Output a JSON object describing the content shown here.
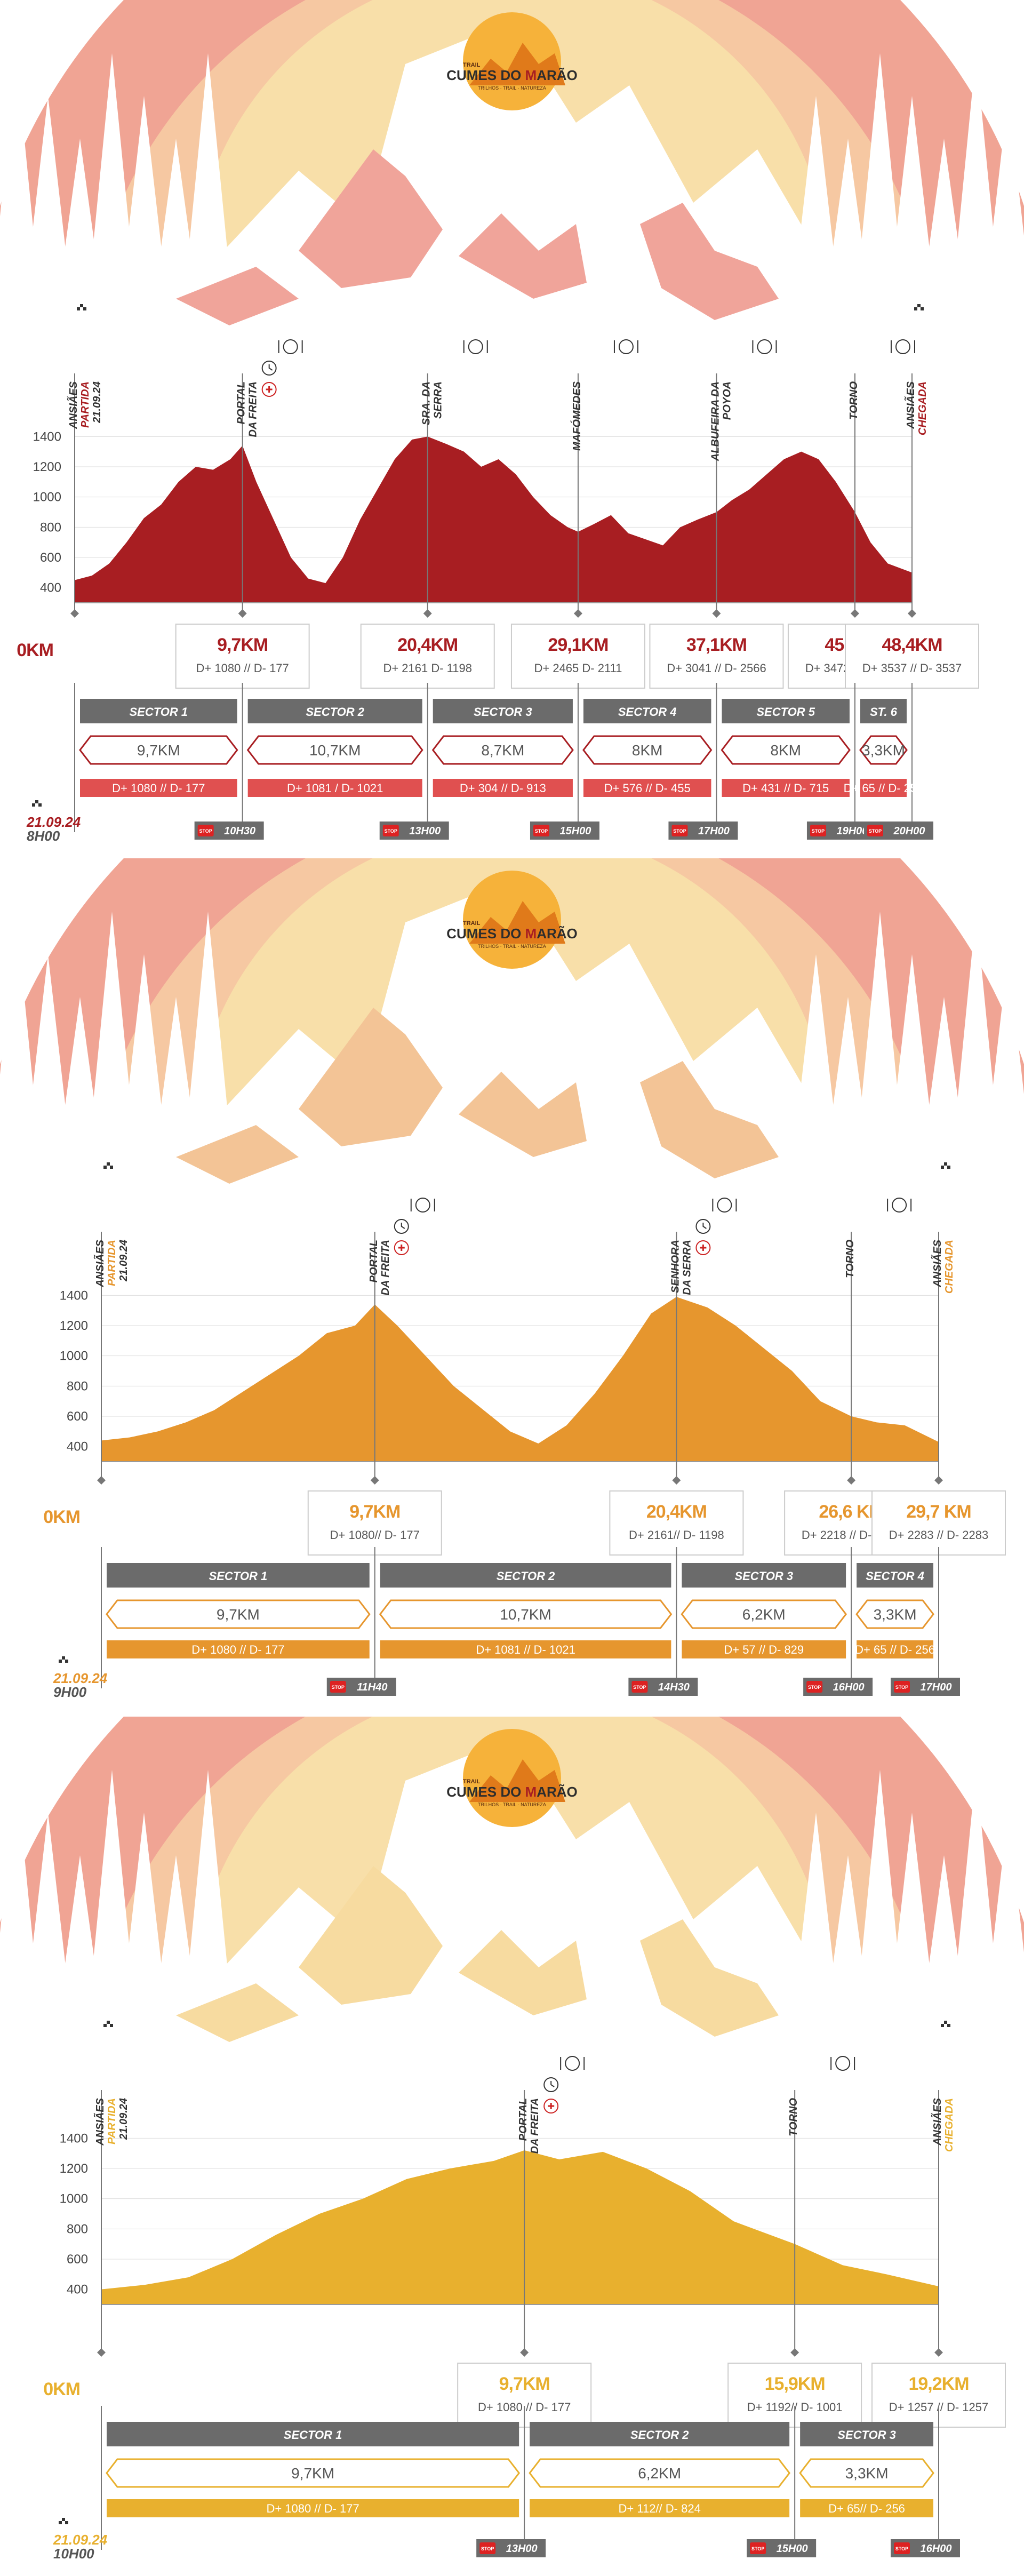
{
  "logo": {
    "top_text": "TRAIL",
    "name_left": "CUMES DO ",
    "name_m": "M",
    "name_right": "ARÃO",
    "tagline": "TRILHOS · TRAIL · NATUREZA"
  },
  "icons": {
    "start_flag": "checkered-flag-icon",
    "food": "fork-knife-plate-icon",
    "time": "clock-icon",
    "aid": "first-aid-icon",
    "stop": "stop-sign-icon"
  },
  "races": [
    {
      "accent": "#a81e22",
      "secondary": "#e05050",
      "bg_outer": "#f0a494",
      "bg_mid": "#f6c8a2",
      "bg_inner": "#f8dfa9",
      "mountain": "#f0a49a",
      "ylim": [
        300,
        1500
      ],
      "yticks": [
        "1400",
        "1200",
        "1000",
        "800",
        "600",
        "400"
      ],
      "zero_km": "0KM",
      "date": "21.09.24",
      "start_time": "8H00",
      "waypoints": [
        {
          "label1": "ANSIÃES",
          "label2": "PARTIDA",
          "label3": "21.09.24",
          "km_val": 0,
          "flag": true,
          "food": false,
          "time": false,
          "aid": false,
          "km": "",
          "dplus": ""
        },
        {
          "label1": "PORTAL",
          "label2": "DA FREITA",
          "label3": "",
          "km_val": 9.7,
          "flag": false,
          "food": true,
          "time": true,
          "aid": true,
          "km": "9,7KM",
          "dplus": "D+ 1080 // D- 177"
        },
        {
          "label1": "SRA. DA",
          "label2": "SERRA",
          "label3": "",
          "km_val": 20.4,
          "flag": false,
          "food": true,
          "time": false,
          "aid": false,
          "km": "20,4KM",
          "dplus": "D+ 2161 D- 1198"
        },
        {
          "label1": "MAFÓMEDES",
          "label2": "",
          "label3": "",
          "km_val": 29.1,
          "flag": false,
          "food": true,
          "time": false,
          "aid": false,
          "km": "29,1KM",
          "dplus": "D+ 2465 D- 2111"
        },
        {
          "label1": "ALBUFEIRA DA",
          "label2": "POYOA",
          "label3": "",
          "km_val": 37.1,
          "flag": false,
          "food": true,
          "time": false,
          "aid": false,
          "km": "37,1KM",
          "dplus": "D+ 3041 // D- 2566"
        },
        {
          "label1": "TORNO",
          "label2": "",
          "label3": "",
          "km_val": 45.1,
          "flag": false,
          "food": true,
          "time": false,
          "aid": false,
          "km": "45,1KM",
          "dplus": "D+ 3472 // D- 3281"
        },
        {
          "label1": "ANSIÃES",
          "label2": "CHEGADA",
          "label3": "",
          "km_val": 48.4,
          "flag": true,
          "food": false,
          "time": false,
          "aid": false,
          "km": "48,4KM",
          "dplus": "D+ 3537 // D- 3537"
        }
      ],
      "sectors": [
        {
          "name": "SECTOR 1",
          "dist": "9,7KM",
          "dplus": "D+ 1080 // D- 177",
          "stop": "10H30"
        },
        {
          "name": "SECTOR 2",
          "dist": "10,7KM",
          "dplus": "D+ 1081 / D- 1021",
          "stop": "13H00"
        },
        {
          "name": "SECTOR 3",
          "dist": "8,7KM",
          "dplus": "D+ 304 // D- 913",
          "stop": "15H00"
        },
        {
          "name": "SECTOR 4",
          "dist": "8KM",
          "dplus": "D+ 576 // D- 455",
          "stop": "17H00"
        },
        {
          "name": "SECTOR 5",
          "dist": "8KM",
          "dplus": "D+ 431 // D- 715",
          "stop": "19H00"
        },
        {
          "name": "ST. 6",
          "dist": "3,3KM",
          "dplus": "D+ 65 // D- 256",
          "stop": "20H00"
        }
      ],
      "stop_label": "STOP"
    },
    {
      "accent": "#e6962e",
      "secondary": "#e6962e",
      "bg_outer": "#f0a494",
      "bg_mid": "#f6c8a2",
      "bg_inner": "#f8dfa9",
      "mountain": "#f3c496",
      "ylim": [
        300,
        1500
      ],
      "yticks": [
        "1400",
        "1200",
        "1000",
        "800",
        "600",
        "400"
      ],
      "zero_km": "0KM",
      "date": "21.09.24",
      "start_time": "9H00",
      "waypoints": [
        {
          "label1": "ANSIÃES",
          "label2": "PARTIDA",
          "label3": "21.09.24",
          "km_val": 0,
          "flag": true,
          "food": false,
          "time": false,
          "aid": false,
          "km": "",
          "dplus": ""
        },
        {
          "label1": "PORTAL",
          "label2": "DA FREITA",
          "label3": "",
          "km_val": 9.7,
          "flag": false,
          "food": true,
          "time": true,
          "aid": true,
          "km": "9,7KM",
          "dplus": "D+ 1080// D- 177"
        },
        {
          "label1": "SENHORA",
          "label2": "DA SERRA",
          "label3": "",
          "km_val": 20.4,
          "flag": false,
          "food": true,
          "time": true,
          "aid": true,
          "km": "20,4KM",
          "dplus": "D+ 2161// D- 1198"
        },
        {
          "label1": "TORNO",
          "label2": "",
          "label3": "",
          "km_val": 26.6,
          "flag": false,
          "food": true,
          "time": false,
          "aid": false,
          "km": "26,6 KM",
          "dplus": "D+ 2218 // D- 2027"
        },
        {
          "label1": "ANSIÃES",
          "label2": "CHEGADA",
          "label3": "",
          "km_val": 29.7,
          "flag": true,
          "food": false,
          "time": false,
          "aid": false,
          "km": "29,7 KM",
          "dplus": "D+ 2283 // D- 2283"
        }
      ],
      "sectors": [
        {
          "name": "SECTOR 1",
          "dist": "9,7KM",
          "dplus": "D+ 1080 // D- 177",
          "stop": "11H40"
        },
        {
          "name": "SECTOR 2",
          "dist": "10,7KM",
          "dplus": "D+ 1081 // D- 1021",
          "stop": "14H30"
        },
        {
          "name": "SECTOR 3",
          "dist": "6,2KM",
          "dplus": "D+ 57 // D- 829",
          "stop": "16H00"
        },
        {
          "name": "SECTOR 4",
          "dist": "3,3KM",
          "dplus": "D+ 65 // D- 256",
          "stop": "17H00"
        }
      ],
      "stop_label": "STOP"
    },
    {
      "accent": "#e8b02e",
      "secondary": "#e8b02e",
      "bg_outer": "#f0a494",
      "bg_mid": "#f6c8a2",
      "bg_inner": "#f8dfa9",
      "mountain": "#f7dba0",
      "ylim": [
        300,
        1500
      ],
      "yticks": [
        "1400",
        "1200",
        "1000",
        "800",
        "600",
        "400"
      ],
      "zero_km": "0KM",
      "date": "21.09.24",
      "start_time": "10H00",
      "waypoints": [
        {
          "label1": "ANSIÃES",
          "label2": "PARTIDA",
          "label3": "21.09.24",
          "km_val": 0,
          "flag": true,
          "food": false,
          "time": false,
          "aid": false,
          "km": "",
          "dplus": ""
        },
        {
          "label1": "PORTAL",
          "label2": "DA FREITA",
          "label3": "",
          "km_val": 9.7,
          "flag": false,
          "food": true,
          "time": true,
          "aid": true,
          "km": "9,7KM",
          "dplus": "D+ 1080 // D- 177"
        },
        {
          "label1": "TORNO",
          "label2": "",
          "label3": "",
          "km_val": 15.9,
          "flag": false,
          "food": true,
          "time": false,
          "aid": false,
          "km": "15,9KM",
          "dplus": "D+ 1192// D- 1001"
        },
        {
          "label1": "ANSIÃES",
          "label2": "CHEGADA",
          "label3": "",
          "km_val": 19.2,
          "flag": true,
          "food": false,
          "time": false,
          "aid": false,
          "km": "19,2KM",
          "dplus": "D+ 1257 // D- 1257"
        }
      ],
      "sectors": [
        {
          "name": "SECTOR 1",
          "dist": "9,7KM",
          "dplus": "D+ 1080 // D- 177",
          "stop": "13H00"
        },
        {
          "name": "SECTOR 2",
          "dist": "6,2KM",
          "dplus": "D+ 112// D- 824",
          "stop": "15H00"
        },
        {
          "name": "SECTOR 3",
          "dist": "3,3KM",
          "dplus": "D+ 65// D- 256",
          "stop": "16H00"
        }
      ],
      "stop_label": "STOP"
    }
  ],
  "chart_data": [
    {
      "type": "area",
      "title": "",
      "xlabel": "",
      "ylabel": "",
      "ylim": [
        300,
        1500
      ],
      "x": [
        0,
        1,
        2,
        3,
        4,
        5,
        6,
        7,
        8,
        9,
        9.7,
        10.5,
        11.5,
        12.5,
        13.5,
        14.5,
        15.5,
        16.5,
        17.5,
        18.5,
        19.5,
        20.4,
        21.5,
        22.5,
        23.5,
        24.5,
        25.5,
        26.5,
        27.5,
        28.5,
        29.1,
        30,
        31,
        32,
        33,
        34,
        35,
        36,
        37.1,
        38,
        39,
        40,
        41,
        42,
        43,
        44,
        45.1,
        46,
        47,
        48.4
      ],
      "series": [
        {
          "values": [
            450,
            480,
            560,
            700,
            860,
            950,
            1100,
            1200,
            1180,
            1250,
            1340,
            1100,
            850,
            600,
            460,
            430,
            600,
            850,
            1050,
            1250,
            1380,
            1400,
            1350,
            1300,
            1200,
            1250,
            1150,
            1000,
            880,
            800,
            770,
            820,
            880,
            760,
            720,
            680,
            800,
            850,
            900,
            980,
            1050,
            1150,
            1250,
            1300,
            1250,
            1100,
            900,
            700,
            560,
            500
          ]
        }
      ]
    },
    {
      "type": "area",
      "title": "",
      "xlabel": "",
      "ylabel": "",
      "ylim": [
        300,
        1500
      ],
      "x": [
        0,
        1,
        2,
        3,
        4,
        5,
        6,
        7,
        8,
        9,
        9.7,
        10.5,
        11.5,
        12.5,
        13.5,
        14.5,
        15.5,
        16.5,
        17.5,
        18.5,
        19.5,
        20.4,
        21.5,
        22.5,
        23.5,
        24.5,
        25.5,
        26.6,
        27.5,
        28.5,
        29.7
      ],
      "series": [
        {
          "values": [
            440,
            460,
            500,
            560,
            640,
            760,
            880,
            1000,
            1150,
            1200,
            1340,
            1200,
            1000,
            800,
            650,
            500,
            420,
            540,
            750,
            1000,
            1280,
            1390,
            1320,
            1200,
            1050,
            900,
            700,
            600,
            560,
            540,
            430
          ]
        }
      ]
    },
    {
      "type": "area",
      "title": "",
      "xlabel": "",
      "ylabel": "",
      "ylim": [
        300,
        1500
      ],
      "x": [
        0,
        1,
        2,
        3,
        4,
        5,
        6,
        7,
        8,
        9,
        9.7,
        10.5,
        11.5,
        12.5,
        13.5,
        14.5,
        15.9,
        17,
        18,
        19.2
      ],
      "series": [
        {
          "values": [
            400,
            430,
            480,
            600,
            760,
            900,
            1000,
            1130,
            1200,
            1250,
            1320,
            1260,
            1310,
            1200,
            1050,
            850,
            700,
            560,
            500,
            420
          ]
        }
      ]
    }
  ]
}
